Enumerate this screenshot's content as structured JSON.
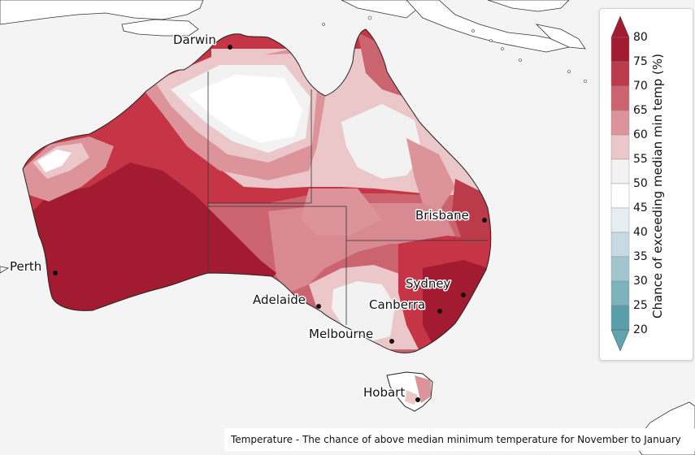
{
  "cities": [
    {
      "name": "Darwin"
    },
    {
      "name": "Brisbane"
    },
    {
      "name": "Perth"
    },
    {
      "name": "Sydney"
    },
    {
      "name": "Adelaide"
    },
    {
      "name": "Canberra"
    },
    {
      "name": "Melbourne"
    },
    {
      "name": "Hobart"
    }
  ],
  "legend": {
    "title": "Chance of exceeding median min temp (%)",
    "ticks": [
      "80",
      "75",
      "70",
      "65",
      "60",
      "55",
      "50",
      "45",
      "40",
      "35",
      "30",
      "25",
      "20"
    ],
    "colors": [
      "#a31b30",
      "#bb3b4a",
      "#cc6470",
      "#dc939a",
      "#ebc7ca",
      "#f2f2f2",
      "#ffffff",
      "#e6eef1",
      "#c5dbe1",
      "#a2c6cf",
      "#7eb2bd",
      "#5a9eac"
    ],
    "over_color": "#a31b30",
    "under_color": "#5ea4b3"
  },
  "caption": "Temperature - The chance of above median minimum temperature for November to January"
}
